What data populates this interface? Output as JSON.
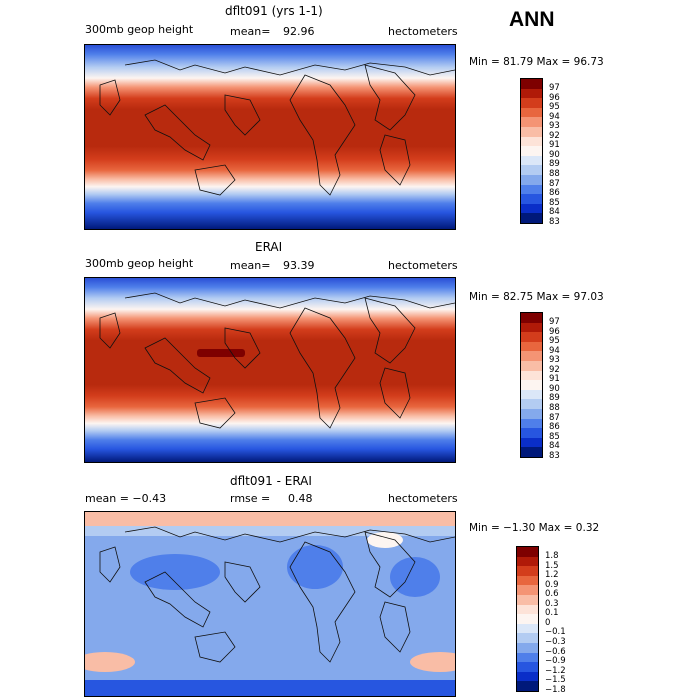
{
  "season": "ANN",
  "panels": [
    {
      "title": "dflt091 (yrs 1-1)",
      "left_label": "300mb geop height",
      "stat_label": "mean=",
      "stat_value": "92.96",
      "units": "hectometers",
      "min_max_text": "Min =  81.79 Max =  96.73",
      "colorbar_labels": [
        "97",
        "96",
        "95",
        "94",
        "93",
        "92",
        "91",
        "90",
        "89",
        "88",
        "87",
        "86",
        "85",
        "84",
        "83"
      ]
    },
    {
      "title": "ERAI",
      "left_label": "300mb geop height",
      "stat_label": "mean=",
      "stat_value": "93.39",
      "units": "hectometers",
      "min_max_text": "Min =  82.75 Max =  97.03",
      "colorbar_labels": [
        "97",
        "96",
        "95",
        "94",
        "93",
        "92",
        "91",
        "90",
        "89",
        "88",
        "87",
        "86",
        "85",
        "84",
        "83"
      ]
    },
    {
      "title": "dflt091 - ERAI",
      "left_label": "mean =   −0.43",
      "stat_label": "rmse =",
      "stat_value": "0.48",
      "units": "hectometers",
      "min_max_text": "Min =  −1.30 Max =   0.32",
      "colorbar_labels": [
        "1.8",
        "1.5",
        "1.2",
        "0.9",
        "0.6",
        "0.3",
        "0.1",
        "0",
        "−0.1",
        "−0.3",
        "−0.6",
        "−0.9",
        "−1.2",
        "−1.5",
        "−1.8"
      ]
    }
  ],
  "colors": {
    "field_scale": [
      "#7e0000",
      "#b01a08",
      "#d33d1c",
      "#e8663e",
      "#f49474",
      "#f9bda6",
      "#fde3d8",
      "#fdf5f1",
      "#dbe7f8",
      "#b3ccf2",
      "#84a9ec",
      "#4f7fea",
      "#2756e0",
      "#0a2ec8",
      "#00197a"
    ],
    "diff_scale": [
      "#7e0000",
      "#b01a08",
      "#d33d1c",
      "#e8663e",
      "#f49474",
      "#f9bda6",
      "#fde3d8",
      "#fdf5f1",
      "#dbe7f8",
      "#b3ccf2",
      "#84a9ec",
      "#4f7fea",
      "#2756e0",
      "#0a2ec8",
      "#00197a"
    ]
  }
}
